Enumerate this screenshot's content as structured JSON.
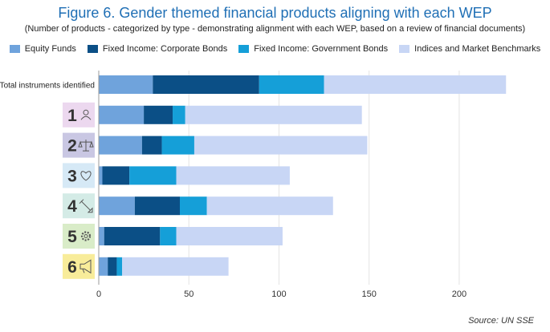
{
  "title": "Figure 6. Gender themed financial products aligning with each WEP",
  "subtitle": "(Number of products - categorized by type - demonstrating alignment with each WEP, based on a review of financial documents)",
  "source": {
    "label": "Source",
    "value": ": UN SSE"
  },
  "colors": {
    "Equity Funds": "#6fa3dc",
    "Fixed Income: Corporate Bonds": "#0b4f86",
    "Fixed Income: Government Bonds": "#159fd8",
    "Indices and Market Benchmarks": "#c8d6f5"
  },
  "chart_data": {
    "type": "bar",
    "orientation": "horizontal",
    "stacked": true,
    "categories": [
      "Total instruments identified",
      "1",
      "2",
      "3",
      "4",
      "5",
      "6"
    ],
    "category_icons": [
      "",
      "person-icon",
      "scales-icon",
      "heart-icon",
      "pen-icon",
      "gear-icon",
      "megaphone-icon"
    ],
    "category_badge_colors": [
      "",
      "#ecd8ef",
      "#c9c7e3",
      "#d6e9f6",
      "#d4ebe6",
      "#d9ecc8",
      "#f8ec9a"
    ],
    "series": [
      {
        "name": "Equity Funds",
        "values": [
          30,
          25,
          24,
          2,
          20,
          3,
          5
        ]
      },
      {
        "name": "Fixed Income: Corporate Bonds",
        "values": [
          59,
          16,
          11,
          15,
          25,
          31,
          5
        ]
      },
      {
        "name": "Fixed Income: Government Bonds",
        "values": [
          36,
          7,
          18,
          26,
          15,
          9,
          3
        ]
      },
      {
        "name": "Indices and Market Benchmarks",
        "values": [
          101,
          98,
          96,
          63,
          70,
          59,
          59
        ]
      }
    ],
    "xlim": [
      0,
      225
    ],
    "xticks": [
      0,
      50,
      100,
      150,
      200
    ],
    "grid": true,
    "legend": "top"
  }
}
